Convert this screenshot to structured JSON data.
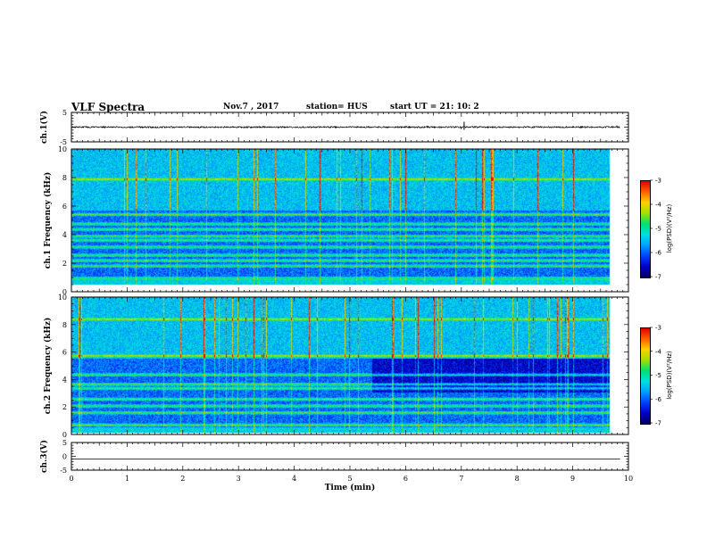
{
  "header": {
    "title": "VLF Spectra",
    "date": "Nov.7 , 2017",
    "station": "station= HUS",
    "start": "start  UT =   21: 10: 2"
  },
  "colormap": [
    "#000060",
    "#0000c8",
    "#0040ff",
    "#00a0ff",
    "#00e0e0",
    "#00e070",
    "#a0e000",
    "#ffd000",
    "#ff6000",
    "#e00000",
    "#ffffff"
  ],
  "chart_data": [
    {
      "type": "line",
      "panel": "ch1-waveform",
      "ylabel": "ch.1(V)",
      "ylim": [
        -5,
        5
      ],
      "yticks": [
        "5",
        "-5"
      ],
      "series": [
        {
          "values_description_only": null,
          "level": 0
        }
      ]
    },
    {
      "type": "heatmap",
      "panel": "ch1-spectrogram",
      "ylabel": "ch.1 Frequency (kHz)",
      "ylim": [
        0,
        10
      ],
      "yticks": [
        "0",
        "2",
        "4",
        "6",
        "8",
        "10"
      ],
      "bands_khz": [
        0.5,
        1.4,
        1.8,
        2.2,
        2.8,
        3.3,
        3.6,
        4.1,
        4.5,
        5.2,
        7.8
      ],
      "colorbar": {
        "label": "log(PSD)(V²/Hz)",
        "range": [
          -7,
          -3
        ],
        "ticks": [
          "-3",
          "-4",
          "-5",
          "-6",
          "-7"
        ]
      }
    },
    {
      "type": "heatmap",
      "panel": "ch2-spectrogram",
      "ylabel": "ch.2 Frequency (kHz)",
      "ylim": [
        0,
        10
      ],
      "yticks": [
        "0",
        "2",
        "4",
        "6",
        "8",
        "10"
      ],
      "bands_khz": [
        0.6,
        1.5,
        2.0,
        2.5,
        3.3,
        3.6,
        4.3,
        5.7,
        8.4
      ],
      "colorbar": {
        "label": "log(PSD)(V²/Hz)",
        "range": [
          -7,
          -3
        ],
        "ticks": [
          "-3",
          "-4",
          "-5",
          "-6",
          "-7"
        ]
      }
    },
    {
      "type": "line",
      "panel": "ch3-waveform",
      "ylabel": "ch.3(V)",
      "ylim": [
        -5,
        5
      ],
      "yticks": [
        "5",
        "0",
        "-5"
      ],
      "series": [
        {
          "level": -1
        }
      ]
    }
  ],
  "xaxis": {
    "label": "Time  (min)",
    "range": [
      0,
      10
    ],
    "ticks": [
      "0",
      "1",
      "2",
      "3",
      "4",
      "5",
      "6",
      "7",
      "8",
      "9",
      "10"
    ],
    "data_end": 9.85
  }
}
